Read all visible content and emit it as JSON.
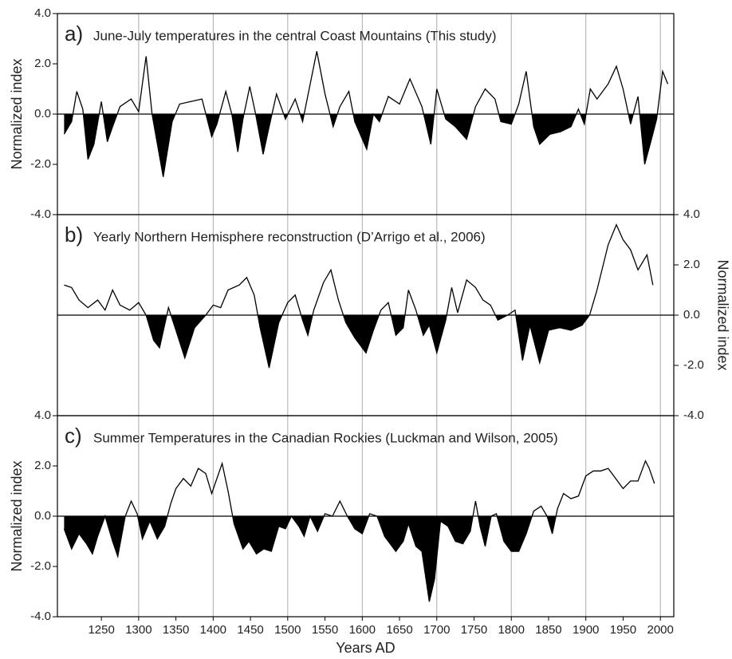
{
  "chart_data": [
    {
      "type": "line",
      "label": "a)",
      "title": "June-July temperatures in the central Coast Mountains (This study)",
      "ylabel": "Normalized index",
      "yaxis_side": "left",
      "color": "#000000",
      "fill_negative": true,
      "xlim": [
        1191,
        2018
      ],
      "ylim": [
        -4,
        4
      ],
      "yticks": [
        {
          "value": 4,
          "label": "4.0"
        },
        {
          "value": 2,
          "label": "2.0"
        },
        {
          "value": 0,
          "label": "0.0"
        },
        {
          "value": -2,
          "label": "-2.0"
        },
        {
          "value": -4,
          "label": "-4.0"
        }
      ],
      "xgrid": [
        1300,
        1400,
        1500,
        1600,
        1700,
        1800,
        1900,
        2000
      ],
      "x": [
        1200,
        1210,
        1217,
        1225,
        1232,
        1240,
        1250,
        1258,
        1265,
        1275,
        1290,
        1300,
        1310,
        1318,
        1333,
        1345,
        1355,
        1370,
        1385,
        1398,
        1405,
        1417,
        1425,
        1433,
        1440,
        1449,
        1457,
        1467,
        1475,
        1485,
        1497,
        1510,
        1520,
        1539,
        1550,
        1561,
        1570,
        1582,
        1590,
        1606,
        1615,
        1623,
        1635,
        1650,
        1664,
        1680,
        1692,
        1700,
        1712,
        1725,
        1740,
        1752,
        1765,
        1778,
        1786,
        1800,
        1810,
        1820,
        1830,
        1838,
        1852,
        1866,
        1880,
        1890,
        1898,
        1906,
        1915,
        1930,
        1941,
        1950,
        1960,
        1970,
        1979,
        1988,
        1995,
        2003,
        2010
      ],
      "values": [
        -0.8,
        -0.3,
        0.9,
        0.2,
        -1.8,
        -1.2,
        0.5,
        -1.1,
        -0.5,
        0.3,
        0.6,
        0.1,
        2.3,
        0.0,
        -2.5,
        -0.3,
        0.4,
        0.5,
        0.6,
        -0.9,
        -0.4,
        0.9,
        0.0,
        -1.5,
        -0.2,
        1.1,
        0.0,
        -1.6,
        -0.5,
        0.8,
        -0.2,
        0.6,
        -0.3,
        2.5,
        0.8,
        -0.5,
        0.3,
        0.9,
        -0.3,
        -1.4,
        0.0,
        -0.3,
        0.7,
        0.4,
        1.4,
        0.3,
        -1.2,
        1.0,
        -0.2,
        -0.5,
        -1.0,
        0.3,
        1.0,
        0.6,
        -0.3,
        -0.4,
        0.4,
        1.7,
        -0.5,
        -1.2,
        -0.8,
        -0.7,
        -0.5,
        0.2,
        -0.4,
        1.0,
        0.6,
        1.2,
        1.9,
        1.0,
        -0.4,
        0.7,
        -2.0,
        -1.0,
        -0.2,
        1.7,
        1.2
      ]
    },
    {
      "type": "line",
      "label": "b)",
      "title": "Yearly Northern Hemisphere reconstruction (D’Arrigo et al., 2006)",
      "ylabel": "Normalized index",
      "yaxis_side": "right",
      "color": "#000000",
      "fill_negative": true,
      "xlim": [
        1191,
        2018
      ],
      "ylim": [
        -4,
        4
      ],
      "yticks": [
        {
          "value": 4,
          "label": "4.0"
        },
        {
          "value": 2,
          "label": "2.0"
        },
        {
          "value": 0,
          "label": "0.0"
        },
        {
          "value": -2,
          "label": "-2.0"
        },
        {
          "value": -4,
          "label": "-4.0"
        }
      ],
      "xgrid": [
        1300,
        1400,
        1500,
        1600,
        1700,
        1800,
        1900,
        2000
      ],
      "x": [
        1200,
        1210,
        1220,
        1232,
        1245,
        1255,
        1265,
        1275,
        1288,
        1300,
        1310,
        1320,
        1328,
        1340,
        1350,
        1362,
        1375,
        1390,
        1400,
        1410,
        1420,
        1435,
        1445,
        1455,
        1463,
        1475,
        1488,
        1500,
        1510,
        1520,
        1527,
        1535,
        1548,
        1558,
        1568,
        1578,
        1590,
        1605,
        1615,
        1625,
        1635,
        1645,
        1655,
        1662,
        1672,
        1682,
        1690,
        1700,
        1712,
        1720,
        1728,
        1740,
        1752,
        1762,
        1772,
        1782,
        1795,
        1805,
        1815,
        1825,
        1838,
        1850,
        1865,
        1880,
        1895,
        1905,
        1915,
        1930,
        1941,
        1950,
        1960,
        1970,
        1982,
        1990
      ],
      "values": [
        1.2,
        1.1,
        0.6,
        0.3,
        0.6,
        0.2,
        1.0,
        0.4,
        0.2,
        0.5,
        0.0,
        -1.0,
        -1.3,
        0.3,
        -0.6,
        -1.7,
        -0.5,
        0.0,
        0.4,
        0.3,
        1.0,
        1.2,
        1.5,
        0.8,
        -0.5,
        -2.1,
        -0.3,
        0.5,
        0.8,
        -0.2,
        -0.8,
        0.2,
        1.3,
        1.8,
        0.6,
        -0.3,
        -0.9,
        -1.5,
        -0.6,
        0.2,
        0.5,
        -0.8,
        -0.5,
        1.0,
        0.2,
        -0.8,
        -0.4,
        -1.5,
        -0.2,
        1.1,
        0.1,
        1.4,
        1.1,
        0.6,
        0.4,
        -0.2,
        0.0,
        0.2,
        -1.8,
        -0.4,
        -1.9,
        -0.6,
        -0.5,
        -0.6,
        -0.4,
        0.0,
        1.0,
        2.8,
        3.6,
        3.0,
        2.6,
        1.8,
        2.4,
        1.2
      ]
    },
    {
      "type": "line",
      "label": "c)",
      "title": "Summer Temperatures in the Canadian Rockies (Luckman and Wilson, 2005)",
      "ylabel": "Normalized index",
      "yaxis_side": "left",
      "xlabel": "Years AD",
      "color": "#000000",
      "fill_negative": true,
      "xlim": [
        1191,
        2018
      ],
      "ylim": [
        -4,
        4
      ],
      "yticks": [
        {
          "value": 4,
          "label": "4.0"
        },
        {
          "value": 2,
          "label": "2.0"
        },
        {
          "value": 0,
          "label": "0.0"
        },
        {
          "value": -2,
          "label": "-2.0"
        },
        {
          "value": -4,
          "label": "-4.0"
        }
      ],
      "xgrid": [
        1300,
        1400,
        1500,
        1600,
        1700,
        1800,
        1900,
        2000
      ],
      "xticks": [
        1250,
        1300,
        1350,
        1400,
        1450,
        1500,
        1550,
        1600,
        1650,
        1700,
        1750,
        1800,
        1850,
        1900,
        1950,
        2000
      ],
      "x": [
        1200,
        1210,
        1220,
        1230,
        1238,
        1245,
        1255,
        1265,
        1272,
        1282,
        1290,
        1298,
        1305,
        1315,
        1325,
        1335,
        1343,
        1350,
        1360,
        1370,
        1380,
        1390,
        1398,
        1405,
        1412,
        1420,
        1428,
        1440,
        1448,
        1458,
        1468,
        1478,
        1488,
        1497,
        1505,
        1515,
        1522,
        1530,
        1540,
        1550,
        1560,
        1570,
        1580,
        1590,
        1600,
        1610,
        1620,
        1630,
        1645,
        1655,
        1662,
        1672,
        1680,
        1690,
        1697,
        1705,
        1715,
        1725,
        1735,
        1745,
        1752,
        1758,
        1765,
        1773,
        1780,
        1790,
        1800,
        1810,
        1820,
        1830,
        1840,
        1848,
        1855,
        1862,
        1870,
        1880,
        1890,
        1900,
        1910,
        1920,
        1930,
        1940,
        1950,
        1960,
        1970,
        1980,
        1985,
        1992
      ],
      "values": [
        -0.5,
        -1.3,
        -0.7,
        -1.1,
        -1.5,
        -0.8,
        0.0,
        -1.0,
        -1.6,
        0.0,
        0.6,
        0.1,
        -0.9,
        -0.2,
        -0.9,
        -0.4,
        0.5,
        1.1,
        1.5,
        1.2,
        1.9,
        1.7,
        0.9,
        1.5,
        2.1,
        1.0,
        -0.3,
        -1.3,
        -1.0,
        -1.5,
        -1.3,
        -1.4,
        -0.4,
        -0.5,
        0.0,
        -0.4,
        -0.8,
        0.0,
        -0.6,
        0.1,
        0.0,
        0.6,
        0.0,
        -0.5,
        -0.7,
        0.1,
        0.0,
        -0.8,
        -1.4,
        -1.0,
        -0.3,
        -1.2,
        -1.4,
        -3.4,
        -2.5,
        -0.2,
        -0.4,
        -1.0,
        -1.1,
        -0.6,
        0.6,
        -0.4,
        -1.2,
        0.0,
        0.1,
        -1.0,
        -1.4,
        -1.4,
        -0.7,
        0.2,
        0.4,
        0.0,
        -0.7,
        0.3,
        0.9,
        0.7,
        0.8,
        1.6,
        1.8,
        1.8,
        1.9,
        1.5,
        1.1,
        1.4,
        1.4,
        2.2,
        1.9,
        1.3
      ]
    }
  ]
}
